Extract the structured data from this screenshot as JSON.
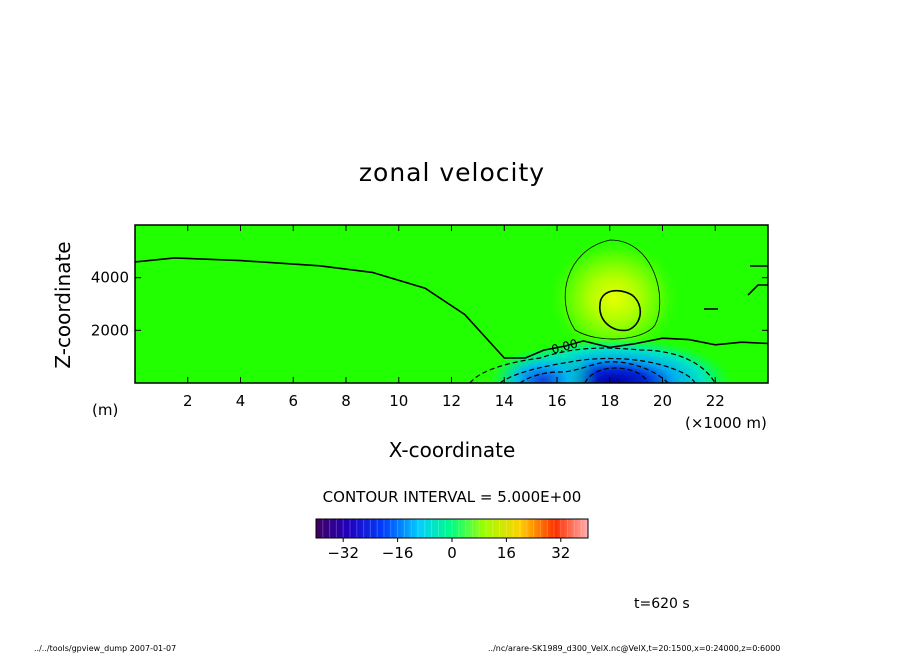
{
  "chart_data": {
    "type": "heatmap",
    "title": "zonal velocity",
    "xlabel": "X-coordinate",
    "ylabel": "Z-coordinate",
    "x_unit": "(×1000 m)",
    "y_unit": "(m)",
    "xlim": [
      0,
      24
    ],
    "ylim": [
      0,
      6000
    ],
    "x_ticks": [
      2,
      4,
      6,
      8,
      10,
      12,
      14,
      16,
      18,
      20,
      22
    ],
    "y_ticks": [
      2000,
      4000
    ],
    "contour_interval": "CONTOUR INTERVAL = 5.000E+00",
    "contour_label": "0.00",
    "colorbar": {
      "range": [
        -40,
        40
      ],
      "ticks": [
        -32,
        -16,
        0,
        16,
        32
      ],
      "tick_labels": [
        "−32",
        "−16",
        "0",
        "16",
        "32"
      ]
    },
    "field_features": [
      {
        "name": "positive jet aloft",
        "x": 18.4,
        "z": 2800,
        "value": 12
      },
      {
        "name": "negative core near surface",
        "x": 18.3,
        "z": 200,
        "value": -35
      },
      {
        "name": "secondary negative region",
        "x": 15.5,
        "z": 300,
        "value": -20
      }
    ],
    "zero_contour": [
      [
        0,
        4600
      ],
      [
        1.5,
        4750
      ],
      [
        4,
        4650
      ],
      [
        7,
        4450
      ],
      [
        9,
        4200
      ],
      [
        11,
        3600
      ],
      [
        12.5,
        2600
      ],
      [
        13.5,
        1500
      ],
      [
        14,
        950
      ],
      [
        14.8,
        950
      ],
      [
        15.5,
        1250
      ],
      [
        16.3,
        1400
      ],
      [
        17,
        1600
      ],
      [
        18,
        1350
      ],
      [
        19,
        1500
      ],
      [
        20,
        1700
      ],
      [
        21,
        1650
      ],
      [
        22,
        1450
      ],
      [
        23,
        1550
      ],
      [
        24,
        1500
      ]
    ],
    "time_label": "t=620 s"
  },
  "footer": {
    "left": "../../tools/gpview_dump  2007-01-07",
    "right": "../nc/arare-SK1989_d300_VelX.nc@VelX,t=20:1500,x=0:24000,z=0:6000"
  }
}
